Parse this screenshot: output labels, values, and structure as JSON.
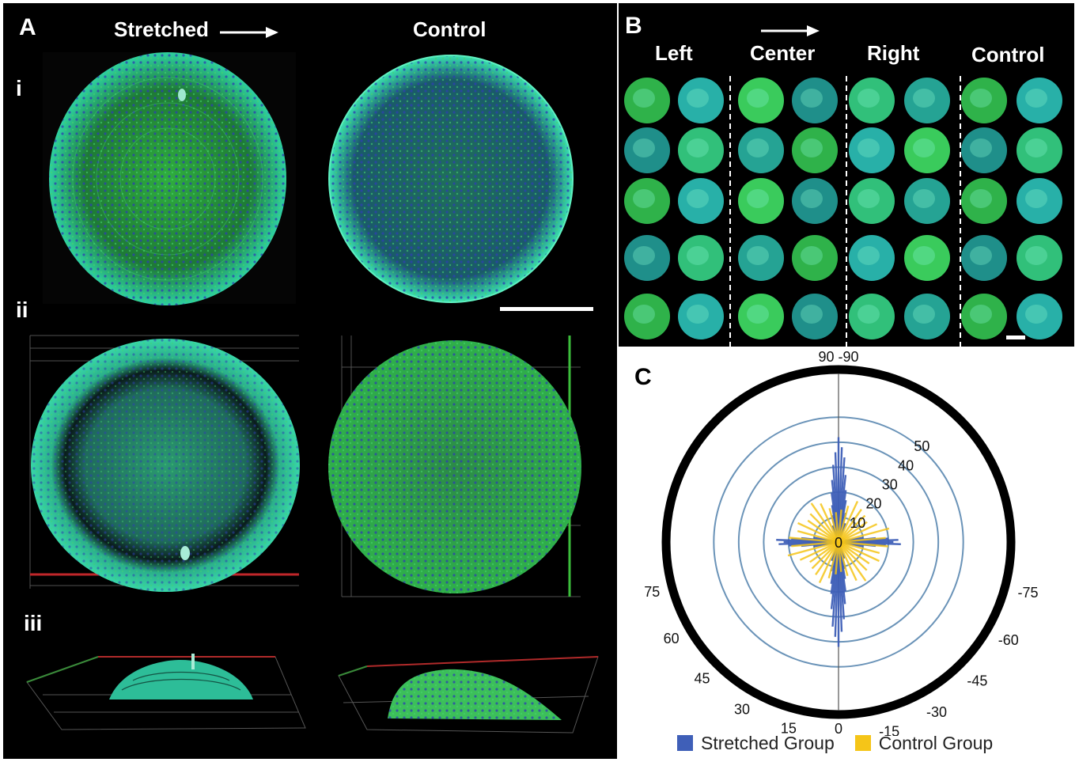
{
  "panel_a": {
    "label": "A",
    "col_stretched": "Stretched",
    "col_control": "Control",
    "row_i": "i",
    "row_ii": "ii",
    "row_iii": "iii"
  },
  "panel_b": {
    "label": "B",
    "columns": [
      "Left",
      "Center",
      "Right",
      "Control"
    ]
  },
  "panel_c": {
    "label": "C",
    "legend": [
      {
        "name": "Stretched Group",
        "color": "#3f5fb8"
      },
      {
        "name": "Control Group",
        "color": "#f5c518"
      }
    ]
  },
  "chart_data": {
    "type": "polar-histogram",
    "angle_labels": {
      "top": "90 -90",
      "bottom": "0",
      "left": [
        "75",
        "60",
        "45",
        "30",
        "15"
      ],
      "right": [
        "-75",
        "-60",
        "-45",
        "-30",
        "-15"
      ]
    },
    "radial_ticks": [
      "0",
      "10",
      "20",
      "30",
      "40",
      "50"
    ],
    "radial_ticks_values": [
      0,
      10,
      20,
      30,
      40,
      50
    ],
    "rmax": 65,
    "series": [
      {
        "name": "Stretched Group",
        "color": "#3f5fb8",
        "angles_deg": [
          0,
          2,
          4,
          -2,
          -4,
          6,
          -6,
          8,
          -8,
          10,
          -10,
          14,
          -14,
          20,
          -20,
          86,
          88,
          90,
          -88,
          -86,
          84,
          -84,
          80,
          -80
        ],
        "values": [
          42,
          38,
          34,
          36,
          31,
          27,
          25,
          21,
          20,
          17,
          15,
          12,
          11,
          8,
          7,
          20,
          24,
          22,
          25,
          19,
          15,
          15,
          10,
          10
        ]
      },
      {
        "name": "Control Group",
        "color": "#f5c518",
        "angles_deg": [
          -85,
          -75,
          -65,
          -55,
          -45,
          -35,
          -25,
          -15,
          -5,
          5,
          15,
          25,
          35,
          45,
          55,
          65,
          75,
          85
        ],
        "values": [
          20,
          17,
          18,
          15,
          16,
          19,
          17,
          14,
          12,
          13,
          15,
          18,
          16,
          15,
          14,
          17,
          21,
          19
        ]
      }
    ]
  }
}
